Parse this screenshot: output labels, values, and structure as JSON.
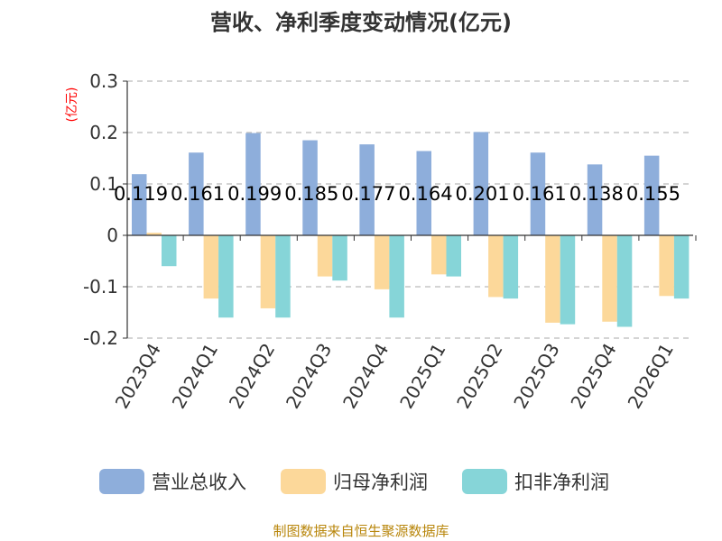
{
  "chart_data": {
    "type": "bar",
    "title": "营收、净利季度变动情况(亿元)",
    "unit_label": "(亿元)",
    "categories": [
      "2023Q4",
      "2024Q1",
      "2024Q2",
      "2024Q3",
      "2024Q4",
      "2025Q1",
      "2025Q2",
      "2025Q3",
      "2025Q4",
      "2026Q1"
    ],
    "yticks": [
      "0.3",
      "0.2",
      "0.1",
      "0",
      "-0.1",
      "-0.2"
    ],
    "ylim": [
      -0.2,
      0.3
    ],
    "grid": true,
    "legend_position": "bottom",
    "series": [
      {
        "name": "营业总收入",
        "color": "#8eaedb",
        "values": [
          0.119,
          0.161,
          0.199,
          0.185,
          0.177,
          0.164,
          0.201,
          0.161,
          0.138,
          0.155
        ]
      },
      {
        "name": "归母净利润",
        "color": "#fcd89a",
        "values": [
          0.005,
          -0.123,
          -0.142,
          -0.08,
          -0.105,
          -0.076,
          -0.12,
          -0.17,
          -0.168,
          -0.118
        ]
      },
      {
        "name": "扣非净利润",
        "color": "#86d5d8",
        "values": [
          -0.06,
          -0.16,
          -0.16,
          -0.088,
          -0.16,
          -0.08,
          -0.123,
          -0.173,
          -0.178,
          -0.123
        ]
      }
    ],
    "data_labels": [
      "0.119",
      "0.161",
      "0.199",
      "0.185",
      "0.177",
      "0.164",
      "0.201",
      "0.161",
      "0.138",
      "0.155"
    ]
  },
  "source_text": "制图数据来自恒生聚源数据库"
}
